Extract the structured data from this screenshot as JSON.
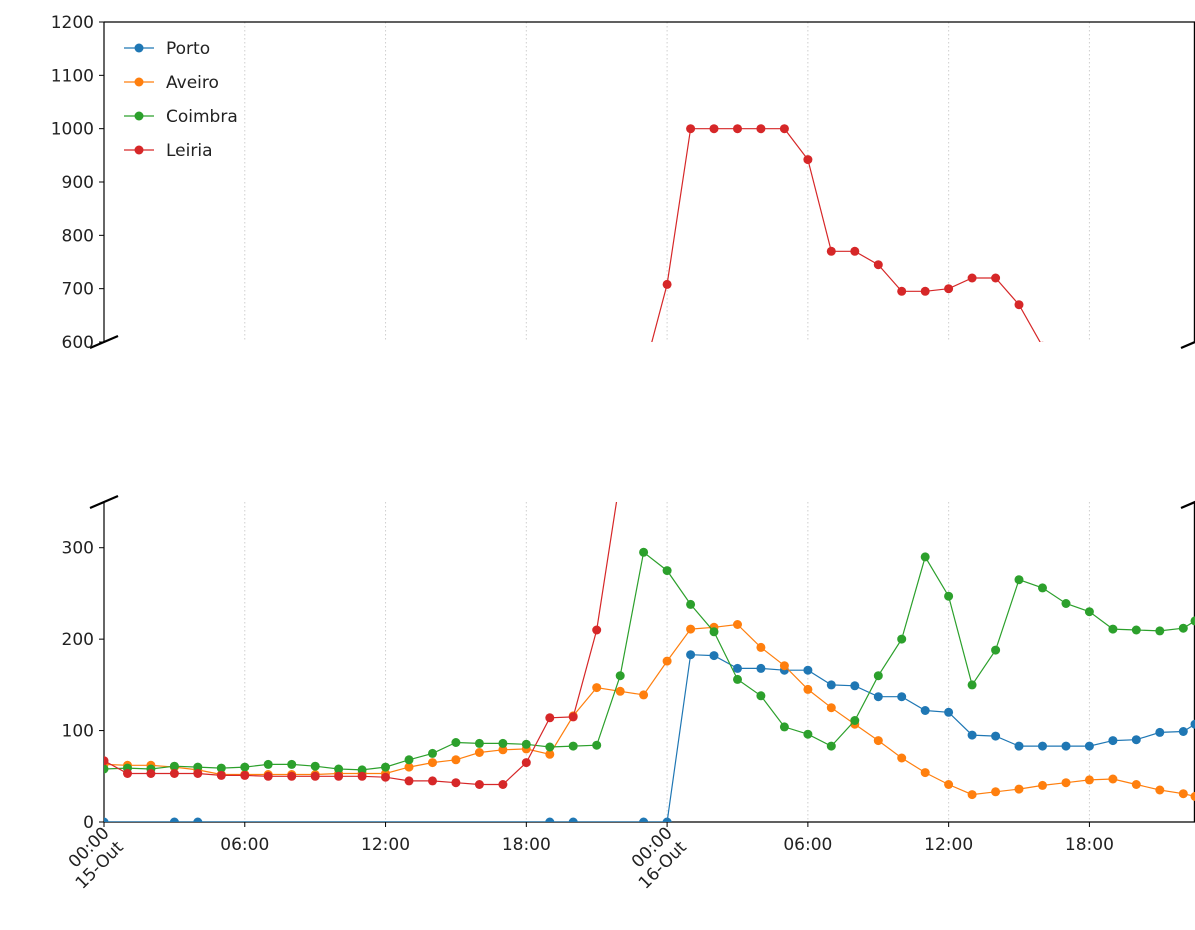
{
  "chart_data": {
    "type": "line",
    "broken_y_axis": true,
    "ylim_upper": [
      600,
      1200
    ],
    "ylim_lower": [
      0,
      350
    ],
    "yticks_upper": [
      600,
      700,
      800,
      900,
      1000,
      1100,
      1200
    ],
    "yticks_lower": [
      0,
      100,
      200,
      300
    ],
    "xlim_hours": [
      0,
      46.5
    ],
    "xticks": [
      {
        "hour": 0,
        "label": "00:00\n15-Out",
        "rotated": true
      },
      {
        "hour": 6,
        "label": "06:00",
        "rotated": false
      },
      {
        "hour": 12,
        "label": "12:00",
        "rotated": false
      },
      {
        "hour": 18,
        "label": "18:00",
        "rotated": false
      },
      {
        "hour": 24,
        "label": "00:00\n16-Out",
        "rotated": true
      },
      {
        "hour": 30,
        "label": "06:00",
        "rotated": false
      },
      {
        "hour": 36,
        "label": "12:00",
        "rotated": false
      },
      {
        "hour": 42,
        "label": "18:00",
        "rotated": false
      }
    ],
    "grid": "vertical dotted",
    "legend_position": "upper-left",
    "series": [
      {
        "name": "Porto",
        "color": "#1f77b4",
        "points": [
          [
            0,
            0
          ],
          [
            3,
            0
          ],
          [
            4,
            0
          ],
          [
            19,
            0
          ],
          [
            20,
            0
          ],
          [
            23,
            0
          ],
          [
            24,
            0
          ],
          [
            25,
            183
          ],
          [
            26,
            182
          ],
          [
            27,
            168
          ],
          [
            28,
            168
          ],
          [
            29,
            166
          ],
          [
            30,
            166
          ],
          [
            31,
            150
          ],
          [
            32,
            149
          ],
          [
            33,
            137
          ],
          [
            34,
            137
          ],
          [
            35,
            122
          ],
          [
            36,
            120
          ],
          [
            37,
            95
          ],
          [
            38,
            94
          ],
          [
            39,
            83
          ],
          [
            40,
            83
          ],
          [
            41,
            83
          ],
          [
            42,
            83
          ],
          [
            43,
            89
          ],
          [
            44,
            90
          ],
          [
            45,
            98
          ],
          [
            46,
            99
          ],
          [
            46.5,
            107
          ]
        ]
      },
      {
        "name": "Aveiro",
        "color": "#ff7f0e",
        "points": [
          [
            0,
            63
          ],
          [
            1,
            62
          ],
          [
            2,
            62
          ],
          [
            3,
            60
          ],
          [
            4,
            57
          ],
          [
            5,
            52
          ],
          [
            6,
            52
          ],
          [
            7,
            52
          ],
          [
            8,
            52
          ],
          [
            9,
            52
          ],
          [
            10,
            53
          ],
          [
            11,
            53
          ],
          [
            12,
            53
          ],
          [
            13,
            60
          ],
          [
            14,
            65
          ],
          [
            15,
            68
          ],
          [
            16,
            76
          ],
          [
            17,
            79
          ],
          [
            18,
            80
          ],
          [
            19,
            74
          ],
          [
            20,
            116
          ],
          [
            21,
            147
          ],
          [
            22,
            143
          ],
          [
            23,
            139
          ],
          [
            24,
            176
          ],
          [
            25,
            211
          ],
          [
            26,
            213
          ],
          [
            27,
            216
          ],
          [
            28,
            191
          ],
          [
            29,
            171
          ],
          [
            30,
            145
          ],
          [
            31,
            125
          ],
          [
            32,
            107
          ],
          [
            33,
            89
          ],
          [
            34,
            70
          ],
          [
            35,
            54
          ],
          [
            36,
            41
          ],
          [
            37,
            30
          ],
          [
            38,
            33
          ],
          [
            39,
            36
          ],
          [
            40,
            40
          ],
          [
            41,
            43
          ],
          [
            42,
            46
          ],
          [
            43,
            47
          ],
          [
            44,
            41
          ],
          [
            45,
            35
          ],
          [
            46,
            31
          ],
          [
            46.5,
            28
          ]
        ]
      },
      {
        "name": "Coimbra",
        "color": "#2ca02c",
        "points": [
          [
            0,
            58
          ],
          [
            1,
            59
          ],
          [
            2,
            58
          ],
          [
            3,
            61
          ],
          [
            4,
            60
          ],
          [
            5,
            59
          ],
          [
            6,
            60
          ],
          [
            7,
            63
          ],
          [
            8,
            63
          ],
          [
            9,
            61
          ],
          [
            10,
            58
          ],
          [
            11,
            57
          ],
          [
            12,
            60
          ],
          [
            13,
            68
          ],
          [
            14,
            75
          ],
          [
            15,
            87
          ],
          [
            16,
            86
          ],
          [
            17,
            86
          ],
          [
            18,
            85
          ],
          [
            19,
            82
          ],
          [
            20,
            83
          ],
          [
            21,
            84
          ],
          [
            22,
            160
          ],
          [
            23,
            295
          ],
          [
            24,
            275
          ],
          [
            25,
            238
          ],
          [
            26,
            208
          ],
          [
            27,
            156
          ],
          [
            28,
            138
          ],
          [
            29,
            104
          ],
          [
            30,
            96
          ],
          [
            31,
            83
          ],
          [
            32,
            111
          ],
          [
            33,
            160
          ],
          [
            34,
            200
          ],
          [
            35,
            290
          ],
          [
            36,
            247
          ],
          [
            37,
            150
          ],
          [
            38,
            188
          ],
          [
            39,
            265
          ],
          [
            40,
            256
          ],
          [
            41,
            239
          ],
          [
            42,
            230
          ],
          [
            43,
            211
          ],
          [
            44,
            210
          ],
          [
            45,
            209
          ],
          [
            46,
            212
          ],
          [
            46.5,
            220
          ]
        ]
      },
      {
        "name": "Leiria",
        "color": "#d62728",
        "points": [
          [
            0,
            67
          ],
          [
            1,
            53
          ],
          [
            2,
            53
          ],
          [
            3,
            53
          ],
          [
            4,
            53
          ],
          [
            5,
            51
          ],
          [
            6,
            51
          ],
          [
            7,
            50
          ],
          [
            8,
            50
          ],
          [
            9,
            50
          ],
          [
            10,
            50
          ],
          [
            11,
            50
          ],
          [
            12,
            49
          ],
          [
            13,
            45
          ],
          [
            14,
            45
          ],
          [
            15,
            43
          ],
          [
            16,
            41
          ],
          [
            17,
            41
          ],
          [
            18,
            65
          ],
          [
            19,
            114
          ],
          [
            20,
            115
          ],
          [
            21,
            210
          ],
          [
            24,
            708
          ],
          [
            25,
            1000
          ],
          [
            26,
            1000
          ],
          [
            27,
            1000
          ],
          [
            28,
            1000
          ],
          [
            29,
            1000
          ],
          [
            30,
            942
          ],
          [
            31,
            770
          ],
          [
            32,
            770
          ],
          [
            33,
            745
          ],
          [
            34,
            695
          ],
          [
            35,
            695
          ],
          [
            36,
            700
          ],
          [
            37,
            720
          ],
          [
            38,
            720
          ],
          [
            39,
            670
          ],
          [
            40,
            592
          ]
        ]
      }
    ]
  }
}
